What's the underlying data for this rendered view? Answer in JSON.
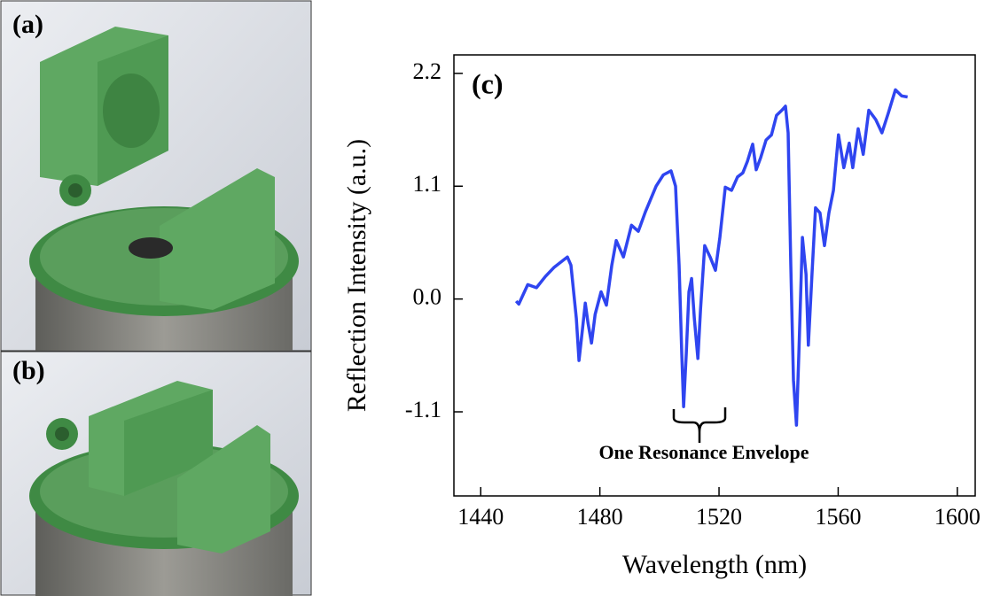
{
  "panels": {
    "a": {
      "label": "(a)"
    },
    "b": {
      "label": "(b)"
    }
  },
  "chart_data": {
    "type": "line",
    "panel_label": "(c)",
    "annotation": "One Resonance Envelope",
    "xlabel": "Wavelength (nm)",
    "ylabel": "Reflection Intensity (a.u.)",
    "color": "#2f45f0",
    "x": [
      1451.9,
      1452.8,
      1455.8,
      1458.7,
      1461.7,
      1464.7,
      1469.1,
      1470.3,
      1472.1,
      1473.0,
      1474.2,
      1475.1,
      1476.0,
      1477.2,
      1478.4,
      1480.4,
      1482.2,
      1484.0,
      1485.5,
      1487.9,
      1490.6,
      1492.9,
      1495.3,
      1498.9,
      1501.3,
      1503.9,
      1505.4,
      1506.6,
      1507.5,
      1508.1,
      1509.0,
      1509.9,
      1510.8,
      1511.7,
      1512.9,
      1513.8,
      1515.2,
      1517.0,
      1518.8,
      1520.3,
      1522.1,
      1524.2,
      1526.2,
      1528.0,
      1529.5,
      1531.3,
      1532.5,
      1534.0,
      1535.8,
      1537.6,
      1539.3,
      1541.1,
      1542.3,
      1543.2,
      1544.1,
      1545.0,
      1546.0,
      1546.8,
      1548.0,
      1549.2,
      1550.0,
      1551.2,
      1552.4,
      1553.9,
      1555.4,
      1556.9,
      1558.4,
      1560.1,
      1561.9,
      1563.7,
      1564.9,
      1566.7,
      1568.4,
      1570.3,
      1572.6,
      1574.7,
      1576.8,
      1579.2,
      1581.3,
      1583.3
    ],
    "values": [
      -0.02,
      -0.05,
      0.14,
      0.11,
      0.22,
      0.31,
      0.41,
      0.33,
      -0.19,
      -0.6,
      -0.28,
      -0.04,
      -0.23,
      -0.43,
      -0.15,
      0.07,
      -0.06,
      0.33,
      0.57,
      0.41,
      0.72,
      0.66,
      0.85,
      1.1,
      1.21,
      1.25,
      1.1,
      0.33,
      -0.53,
      -1.05,
      -0.53,
      0.07,
      0.2,
      -0.19,
      -0.58,
      -0.1,
      0.52,
      0.41,
      0.28,
      0.6,
      1.09,
      1.06,
      1.19,
      1.23,
      1.34,
      1.51,
      1.26,
      1.38,
      1.55,
      1.6,
      1.79,
      1.84,
      1.88,
      1.62,
      0.33,
      -0.79,
      -1.23,
      -0.53,
      0.6,
      0.24,
      -0.45,
      0.24,
      0.89,
      0.84,
      0.52,
      0.84,
      1.06,
      1.6,
      1.28,
      1.52,
      1.28,
      1.66,
      1.41,
      1.84,
      1.75,
      1.62,
      1.81,
      2.04,
      1.98,
      1.97
    ],
    "xlim": [
      1431,
      1606
    ],
    "ylim": [
      -1.92,
      2.38
    ],
    "xticks": [
      1440,
      1480,
      1520,
      1560,
      1600
    ],
    "yticks": [
      -1.1,
      {
        "value": 0,
        "label": "0.0"
      },
      1.1,
      2.2
    ]
  }
}
